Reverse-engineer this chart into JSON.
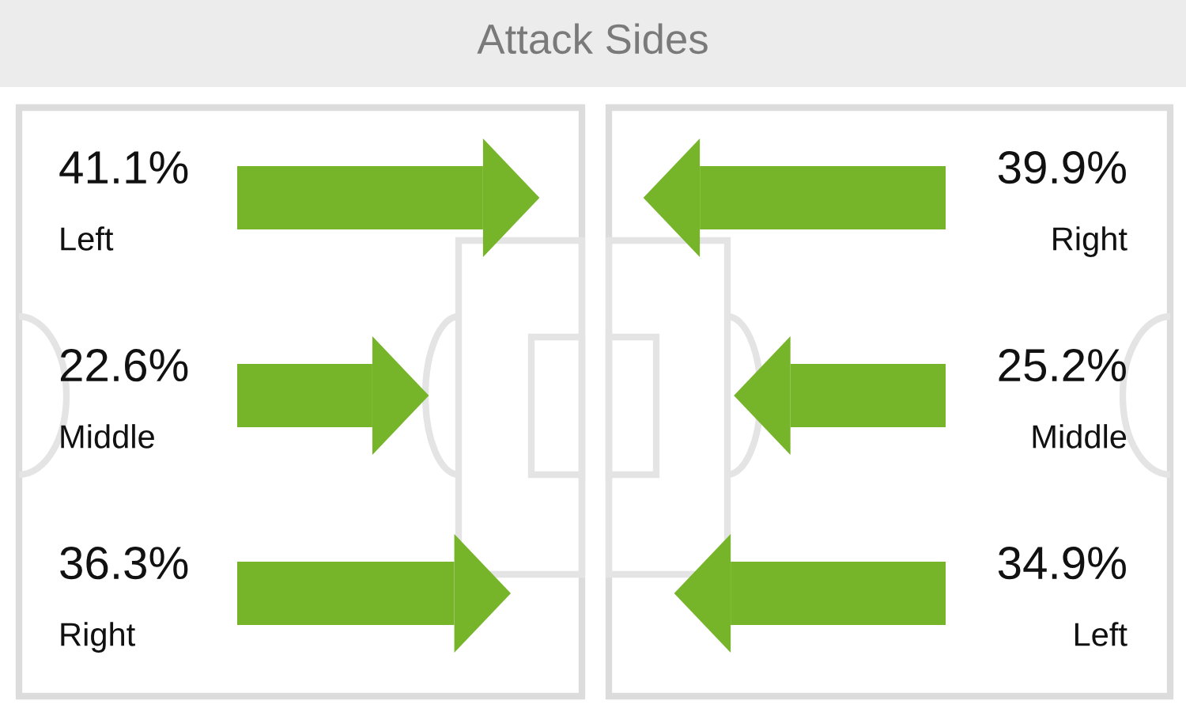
{
  "chart_data": [
    {
      "type": "bar",
      "title": "Attack Sides",
      "orientation": "horizontal",
      "categories": [
        "Left",
        "Middle",
        "Right"
      ],
      "values": [
        41.1,
        22.6,
        36.3
      ],
      "value_labels": [
        "41.1%",
        "22.6%",
        "36.3%"
      ],
      "color": "#76b52a",
      "tick_labels": false
    },
    {
      "type": "bar",
      "orientation": "horizontal",
      "categories": [
        "Right",
        "Middle",
        "Left"
      ],
      "values": [
        39.9,
        25.2,
        34.9
      ],
      "value_labels": [
        "39.9%",
        "25.2%",
        "34.9%"
      ],
      "color": "#76b52a",
      "tick_labels": false
    }
  ]
}
